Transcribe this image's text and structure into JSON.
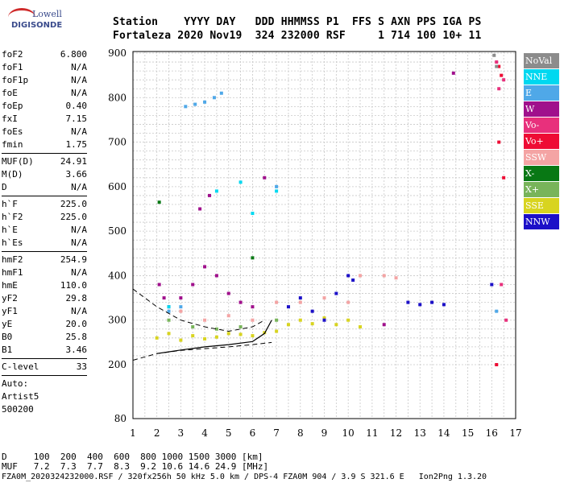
{
  "logo": {
    "top": "Lowell",
    "bottom": "DIGISONDE"
  },
  "header": {
    "line1": "Station    YYYY DAY   DDD HHMMSS P1  FFS S AXN PPS IGA PS",
    "line2": "Fortaleza 2020 Nov19  324 232000 RSF     1 714 100 10+ 11"
  },
  "params": [
    [
      {
        "name": "foF2",
        "value": "6.800"
      },
      {
        "name": "foF1",
        "value": "N/A"
      },
      {
        "name": "foF1p",
        "value": "N/A"
      },
      {
        "name": "foE",
        "value": "N/A"
      },
      {
        "name": "foEp",
        "value": "0.40"
      },
      {
        "name": "fxI",
        "value": "7.15"
      },
      {
        "name": "foEs",
        "value": "N/A"
      },
      {
        "name": "fmin",
        "value": "1.75"
      }
    ],
    [
      {
        "name": "MUF(D)",
        "value": "24.91"
      },
      {
        "name": "M(D)",
        "value": "3.66"
      },
      {
        "name": "D",
        "value": "N/A"
      }
    ],
    [
      {
        "name": "h`F",
        "value": "225.0"
      },
      {
        "name": "h`F2",
        "value": "225.0"
      },
      {
        "name": "h`E",
        "value": "N/A"
      },
      {
        "name": "h`Es",
        "value": "N/A"
      }
    ],
    [
      {
        "name": "hmF2",
        "value": "254.9"
      },
      {
        "name": "hmF1",
        "value": "N/A"
      },
      {
        "name": "hmE",
        "value": "110.0"
      },
      {
        "name": "yF2",
        "value": "29.8"
      },
      {
        "name": "yF1",
        "value": "N/A"
      },
      {
        "name": "yE",
        "value": "20.0"
      },
      {
        "name": "B0",
        "value": "25.8"
      },
      {
        "name": "B1",
        "value": "3.46"
      }
    ],
    [
      {
        "name": "C-level",
        "value": "33"
      }
    ]
  ],
  "auto": {
    "l1": "Auto:",
    "l2": "Artist5",
    "l3": "500200"
  },
  "bottom": {
    "d_line": "D     100  200  400  600  800 1000 1500 3000 [km]",
    "muf_line": "MUF   7.2  7.3  7.7  8.3  9.2 10.6 14.6 24.9 [MHz]",
    "file_line": "FZA0M_2020324232000.RSF / 320fx256h 50 kHz 5.0 km / DPS-4 FZA0M 904 / 3.9 S 321.6 E   Ion2Png 1.3.20"
  },
  "legend": [
    {
      "label": "NoVal",
      "color": "#8c8c8c"
    },
    {
      "label": "NNE",
      "color": "#00d8f0"
    },
    {
      "label": "E",
      "color": "#4fa8e8"
    },
    {
      "label": "W",
      "color": "#a0108c"
    },
    {
      "label": "Vo-",
      "color": "#e8307c"
    },
    {
      "label": "Vo+",
      "color": "#ee0c34"
    },
    {
      "label": "SSW",
      "color": "#f4a4a4"
    },
    {
      "label": "X-",
      "color": "#087814"
    },
    {
      "label": "X+",
      "color": "#78b45a"
    },
    {
      "label": "SSE",
      "color": "#d8d420"
    },
    {
      "label": "NNW",
      "color": "#1c10c8"
    }
  ],
  "chart_data": {
    "type": "scatter",
    "title": "",
    "xlabel": "",
    "ylabel": "",
    "xlim": [
      1,
      17
    ],
    "ylim": [
      80,
      900
    ],
    "x_ticks": [
      "1",
      "2",
      "3",
      "4",
      "5",
      "6",
      "7",
      "8",
      "9",
      "10",
      "11",
      "12",
      "13",
      "14",
      "15",
      "16",
      "17"
    ],
    "y_ticks": [
      "80",
      "200",
      "300",
      "400",
      "500",
      "600",
      "700",
      "800",
      "900"
    ],
    "grid": true,
    "legend_position": "right",
    "series": [
      {
        "name": "SSE",
        "points": [
          [
            2.0,
            260
          ],
          [
            2.5,
            270
          ],
          [
            3.0,
            255
          ],
          [
            3.5,
            265
          ],
          [
            4.0,
            258
          ],
          [
            4.5,
            262
          ],
          [
            5.0,
            270
          ],
          [
            5.5,
            268
          ],
          [
            6.0,
            265
          ],
          [
            6.5,
            272
          ],
          [
            7.0,
            275
          ],
          [
            7.5,
            290
          ],
          [
            8.0,
            300
          ],
          [
            8.5,
            292
          ],
          [
            9.0,
            305
          ],
          [
            9.5,
            290
          ],
          [
            10.0,
            300
          ],
          [
            10.5,
            285
          ]
        ]
      },
      {
        "name": "W",
        "points": [
          [
            2.5,
            330
          ],
          [
            3.0,
            350
          ],
          [
            3.5,
            380
          ],
          [
            4.0,
            420
          ],
          [
            4.5,
            400
          ],
          [
            5.0,
            360
          ],
          [
            5.5,
            340
          ],
          [
            6.0,
            330
          ],
          [
            3.8,
            550
          ],
          [
            4.2,
            580
          ],
          [
            2.1,
            380
          ],
          [
            2.3,
            350
          ],
          [
            6.5,
            620
          ],
          [
            14.4,
            855
          ],
          [
            11.5,
            290
          ]
        ]
      },
      {
        "name": "NNW",
        "points": [
          [
            7.5,
            330
          ],
          [
            8.0,
            350
          ],
          [
            8.5,
            320
          ],
          [
            9.0,
            300
          ],
          [
            9.5,
            360
          ],
          [
            10.0,
            400
          ],
          [
            10.2,
            390
          ],
          [
            12.5,
            340
          ],
          [
            13.0,
            335
          ],
          [
            13.5,
            340
          ],
          [
            14.0,
            335
          ],
          [
            16.0,
            380
          ]
        ]
      },
      {
        "name": "SSW",
        "points": [
          [
            3.0,
            320
          ],
          [
            4.0,
            300
          ],
          [
            5.0,
            310
          ],
          [
            6.0,
            300
          ],
          [
            7.0,
            340
          ],
          [
            8.0,
            340
          ],
          [
            9.0,
            350
          ],
          [
            10.0,
            340
          ],
          [
            10.5,
            400
          ],
          [
            11.5,
            400
          ],
          [
            12.0,
            395
          ]
        ]
      },
      {
        "name": "E",
        "points": [
          [
            3.2,
            780
          ],
          [
            3.6,
            785
          ],
          [
            4.0,
            790
          ],
          [
            4.4,
            800
          ],
          [
            4.7,
            810
          ],
          [
            2.5,
            320
          ],
          [
            3.0,
            330
          ],
          [
            7.0,
            600
          ],
          [
            16.2,
            320
          ]
        ]
      },
      {
        "name": "NNE",
        "points": [
          [
            4.5,
            590
          ],
          [
            5.5,
            610
          ],
          [
            6.0,
            540
          ],
          [
            7.0,
            590
          ],
          [
            2.5,
            330
          ]
        ]
      },
      {
        "name": "Vo+",
        "points": [
          [
            16.3,
            870
          ],
          [
            16.4,
            850
          ],
          [
            16.3,
            700
          ],
          [
            16.2,
            200
          ],
          [
            16.5,
            620
          ]
        ]
      },
      {
        "name": "Vo-",
        "points": [
          [
            16.2,
            880
          ],
          [
            16.5,
            840
          ],
          [
            16.3,
            820
          ],
          [
            16.4,
            380
          ],
          [
            16.6,
            300
          ]
        ]
      },
      {
        "name": "X+",
        "points": [
          [
            2.5,
            300
          ],
          [
            3.5,
            285
          ],
          [
            4.5,
            280
          ],
          [
            5.5,
            285
          ],
          [
            7.0,
            300
          ]
        ]
      },
      {
        "name": "X-",
        "points": [
          [
            2.1,
            565
          ],
          [
            6.0,
            440
          ]
        ]
      },
      {
        "name": "NoVal",
        "points": [
          [
            16.1,
            895
          ],
          [
            16.2,
            870
          ]
        ]
      }
    ]
  }
}
